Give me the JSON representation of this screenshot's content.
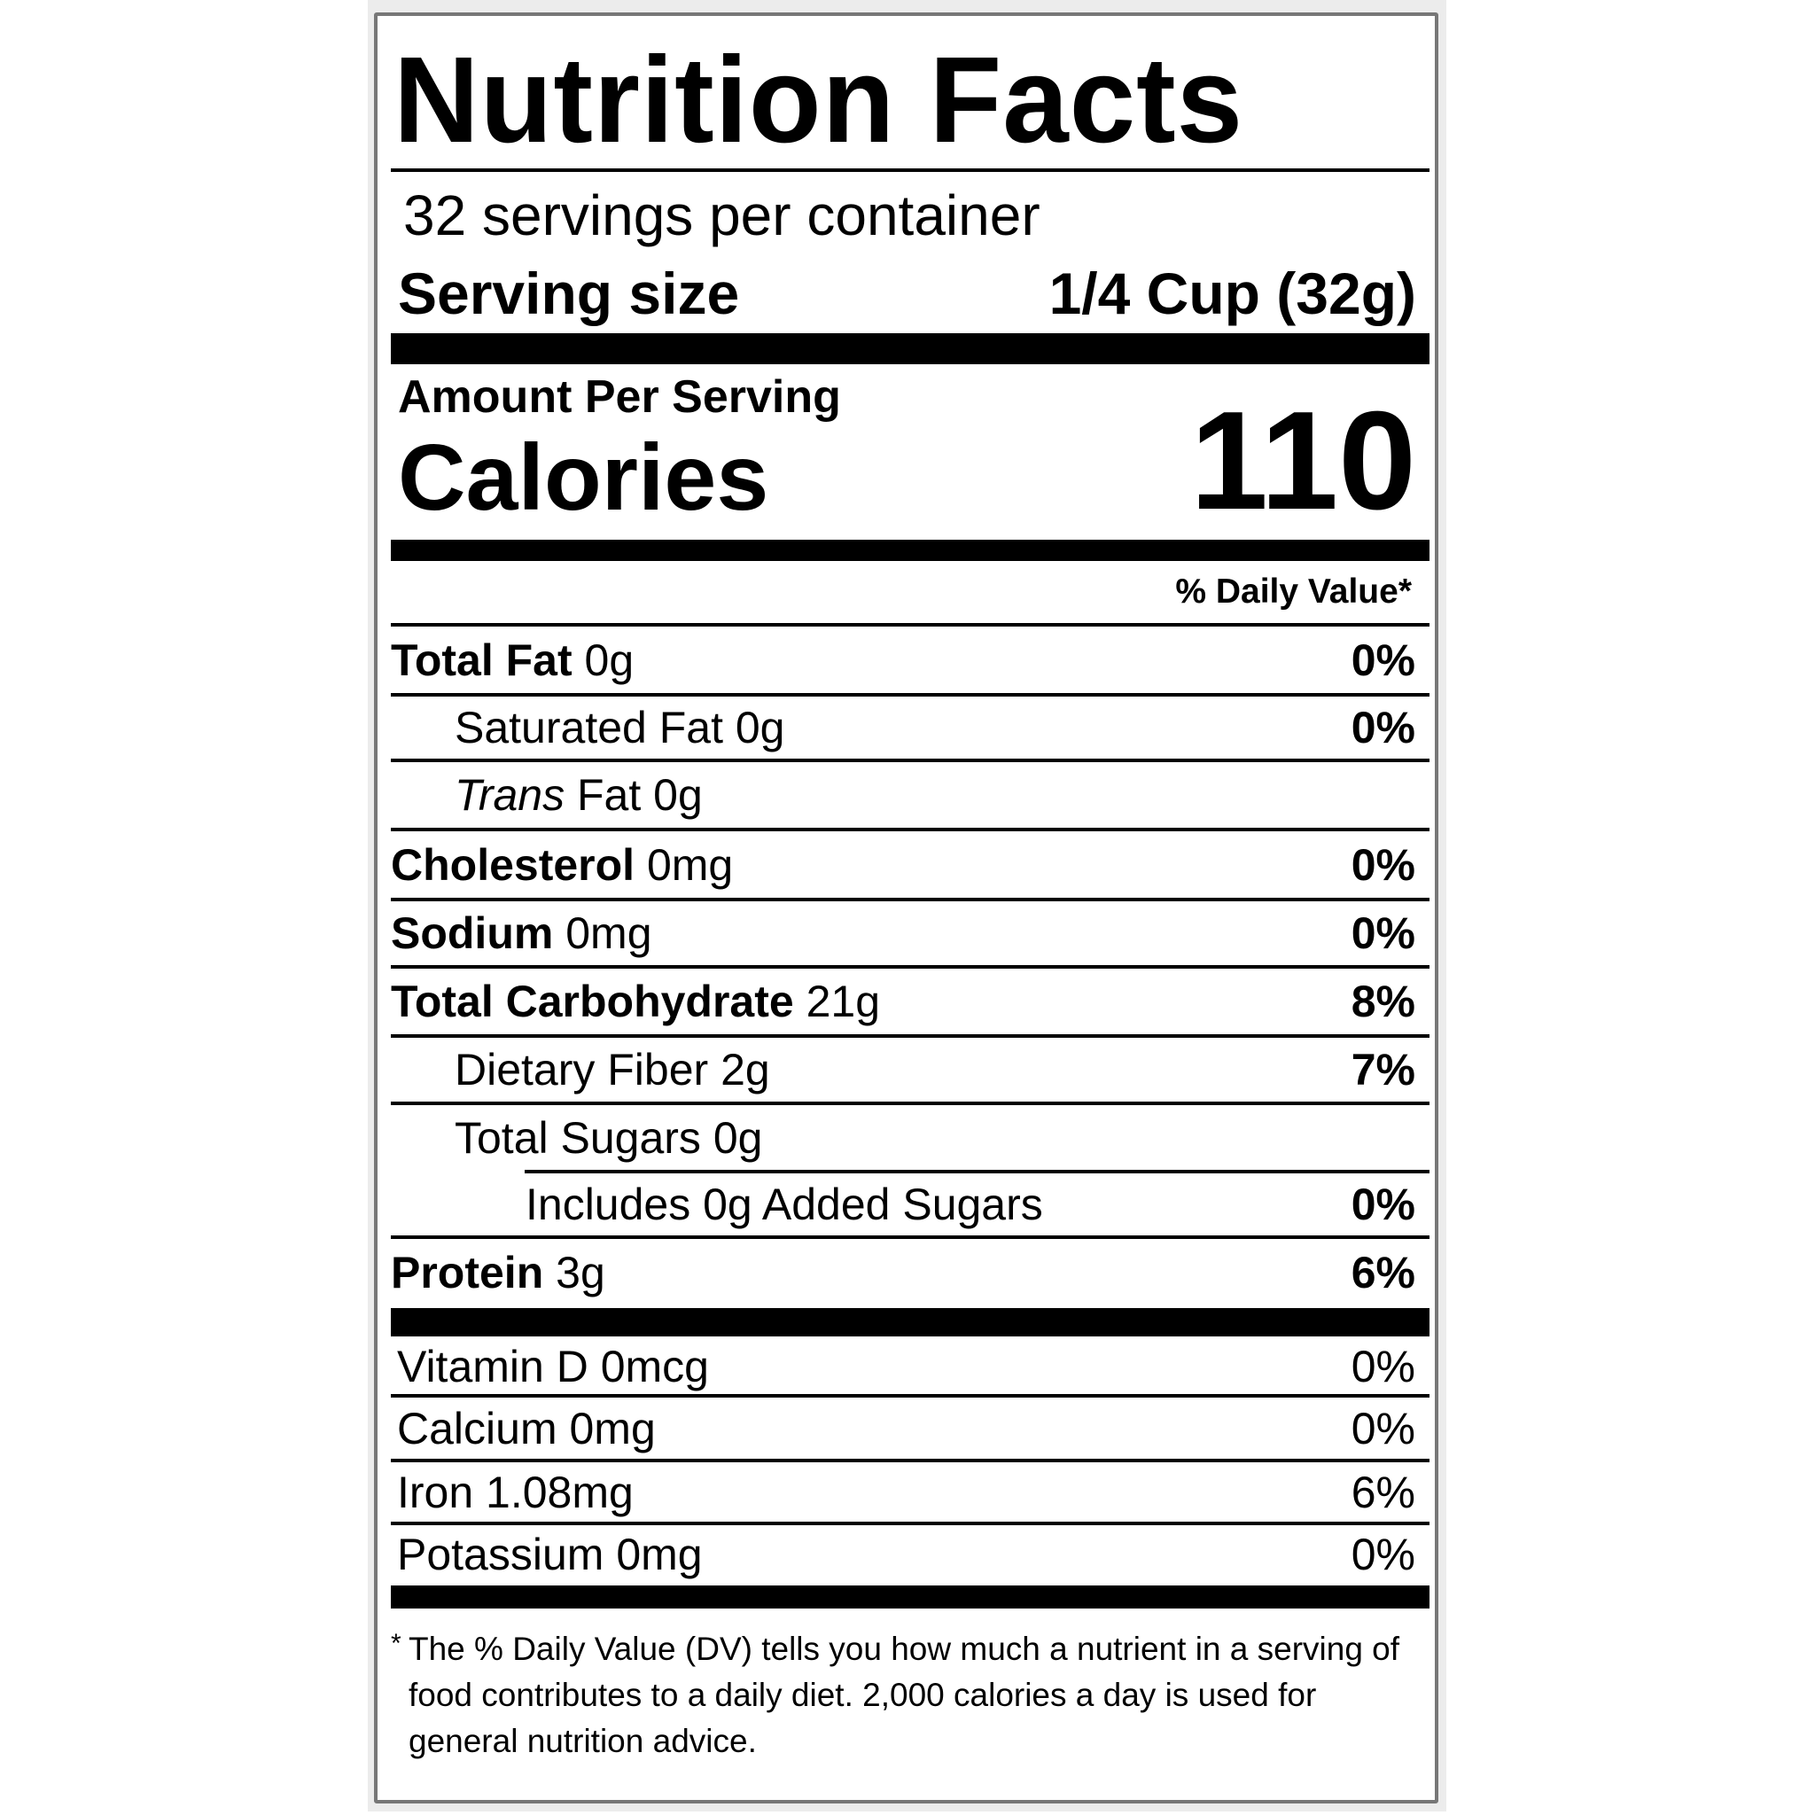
{
  "title": "Nutrition Facts",
  "servings_per_container": "32 servings per container",
  "serving_size_label": "Serving size",
  "serving_size_value": "1/4 Cup (32g)",
  "amount_per_serving": "Amount Per Serving",
  "calories_label": "Calories",
  "calories_value": "110",
  "daily_value_header": "% Daily Value*",
  "nutrients": [
    {
      "bold": "Total Fat",
      "italic": "",
      "rest": "0g",
      "pct": "0%"
    },
    {
      "bold": "",
      "italic": "",
      "rest": "Saturated Fat 0g",
      "pct": "0%"
    },
    {
      "bold": "",
      "italic": "Trans",
      "rest": "Fat 0g",
      "pct": ""
    },
    {
      "bold": "Cholesterol",
      "italic": "",
      "rest": "0mg",
      "pct": "0%"
    },
    {
      "bold": "Sodium",
      "italic": "",
      "rest": "0mg",
      "pct": "0%"
    },
    {
      "bold": "Total Carbohydrate",
      "italic": "",
      "rest": "21g",
      "pct": "8%"
    },
    {
      "bold": "",
      "italic": "",
      "rest": "Dietary Fiber 2g",
      "pct": "7%"
    },
    {
      "bold": "",
      "italic": "",
      "rest": "Total Sugars 0g",
      "pct": ""
    },
    {
      "bold": "",
      "italic": "",
      "rest": "Includes 0g Added Sugars",
      "pct": "0%"
    },
    {
      "bold": "Protein",
      "italic": "",
      "rest": "3g",
      "pct": "6%"
    }
  ],
  "vitamins": [
    {
      "label": "Vitamin D 0mcg",
      "pct": "0%"
    },
    {
      "label": "Calcium 0mg",
      "pct": "0%"
    },
    {
      "label": "Iron 1.08mg",
      "pct": "6%"
    },
    {
      "label": "Potassium 0mg",
      "pct": "0%"
    }
  ],
  "footnote_marker": "*",
  "footnote": "The % Daily Value (DV) tells you how much a nutrient in a serving of food contributes to a daily diet. 2,000 calories a day is used for general nutrition advice."
}
